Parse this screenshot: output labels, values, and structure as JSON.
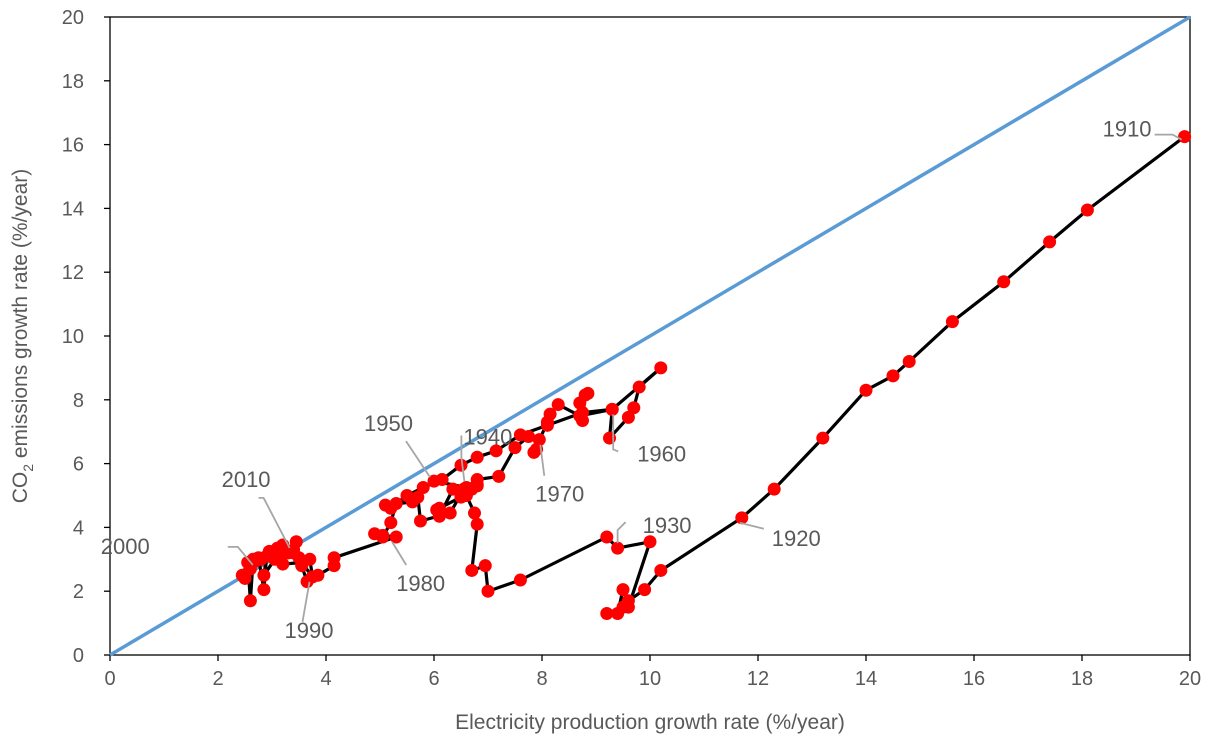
{
  "chart_data": {
    "type": "scatter",
    "title": "",
    "xlabel": "Electricity production growth rate (%/year)",
    "ylabel": {
      "prefix": "CO",
      "subscript": "2",
      "suffix": " emissions growth rate (%/year)"
    },
    "xlim": [
      0,
      20
    ],
    "ylim": [
      0,
      20
    ],
    "xticks": [
      "0",
      "2",
      "4",
      "6",
      "8",
      "10",
      "12",
      "14",
      "16",
      "18",
      "20"
    ],
    "yticks": [
      "0",
      "2",
      "4",
      "6",
      "8",
      "10",
      "12",
      "14",
      "16",
      "18",
      "20"
    ],
    "grid": false,
    "legend": "none",
    "colors": {
      "points": "#ff0000",
      "path": "#000000",
      "reference": "#5b9bd5",
      "annotation_leader": "#a6a6a6",
      "text": "#595959"
    },
    "reference_line": {
      "x": [
        0,
        20
      ],
      "y": [
        0,
        20
      ]
    },
    "series": [
      {
        "x": [
          19.9,
          18.1,
          17.4,
          16.55,
          15.6,
          14.8,
          14.5,
          14.0,
          13.2,
          12.3,
          11.7,
          10.2,
          9.9,
          9.6,
          9.5,
          9.4,
          9.5,
          9.2,
          9.6,
          10.0,
          9.4,
          9.2,
          7.6,
          7.0,
          6.95,
          6.7,
          6.8,
          6.75,
          6.6,
          6.35,
          6.1,
          6.05,
          6.1,
          6.5,
          6.7,
          6.8,
          6.8,
          6.6,
          6.0,
          5.2,
          5.1,
          5.6,
          5.7,
          5.75,
          6.3,
          6.55,
          6.8,
          7.2,
          7.5,
          7.75,
          7.95,
          7.9,
          7.85,
          8.1,
          8.15,
          8.3,
          8.7,
          8.75,
          8.8,
          8.85,
          8.7,
          8.7,
          9.3,
          9.25,
          9.6,
          9.7,
          9.8,
          10.2,
          9.3,
          8.75,
          8.1,
          7.6,
          7.15,
          6.8,
          6.5,
          6.15,
          5.8,
          5.5,
          5.3,
          5.2,
          5.05,
          4.9,
          5.05,
          5.3,
          4.15,
          4.15,
          3.85,
          3.65,
          3.55,
          3.5,
          3.7,
          3.75,
          3.55,
          3.2,
          3.15,
          3.4,
          3.45,
          3.05,
          2.85,
          2.9,
          2.85,
          2.75,
          2.65,
          2.6,
          2.55,
          2.45,
          2.5,
          2.6,
          2.7,
          2.8,
          2.95,
          3.1,
          3.2,
          3.3,
          3.4
        ],
        "y": [
          16.25,
          13.95,
          12.95,
          11.7,
          10.45,
          9.2,
          8.75,
          8.3,
          6.8,
          5.2,
          4.3,
          2.65,
          2.05,
          1.7,
          2.05,
          1.3,
          1.5,
          1.3,
          1.5,
          3.55,
          3.35,
          3.7,
          2.35,
          2.0,
          2.8,
          2.65,
          4.1,
          4.45,
          5.0,
          5.2,
          4.35,
          4.55,
          4.6,
          4.95,
          5.2,
          5.3,
          5.35,
          5.25,
          5.45,
          4.6,
          4.7,
          4.8,
          4.95,
          4.2,
          4.45,
          5.2,
          5.5,
          5.6,
          6.5,
          6.85,
          6.75,
          6.45,
          6.35,
          7.3,
          7.55,
          7.85,
          7.5,
          7.35,
          8.15,
          8.2,
          7.9,
          7.5,
          7.7,
          6.8,
          7.45,
          7.75,
          8.4,
          9.0,
          7.7,
          7.6,
          7.2,
          6.9,
          6.4,
          6.2,
          5.95,
          5.5,
          5.25,
          5.0,
          4.75,
          4.15,
          3.7,
          3.8,
          3.75,
          3.7,
          3.05,
          2.8,
          2.5,
          2.3,
          2.8,
          3.05,
          3.0,
          2.45,
          2.9,
          2.85,
          3.1,
          3.3,
          3.55,
          3.0,
          2.5,
          3.1,
          2.05,
          3.05,
          3.0,
          1.7,
          2.9,
          2.5,
          2.4,
          2.7,
          2.95,
          3.0,
          3.25,
          3.35,
          3.45,
          3.2,
          3.2
        ]
      }
    ],
    "annotations": [
      {
        "text": "1910",
        "x": 19.9,
        "y": 16.25
      },
      {
        "text": "1920",
        "x": 11.7,
        "y": 4.3
      },
      {
        "text": "1930",
        "x": 9.4,
        "y": 3.35
      },
      {
        "text": "1940",
        "x": 6.6,
        "y": 5.25
      },
      {
        "text": "1950",
        "x": 6.0,
        "y": 5.45
      },
      {
        "text": "1960",
        "x": 9.3,
        "y": 7.7
      },
      {
        "text": "1970",
        "x": 7.95,
        "y": 6.75
      },
      {
        "text": "1980",
        "x": 5.3,
        "y": 3.7
      },
      {
        "text": "1990",
        "x": 3.75,
        "y": 2.45
      },
      {
        "text": "2000",
        "x": 2.7,
        "y": 2.7
      },
      {
        "text": "2010",
        "x": 3.4,
        "y": 3.2
      }
    ]
  }
}
